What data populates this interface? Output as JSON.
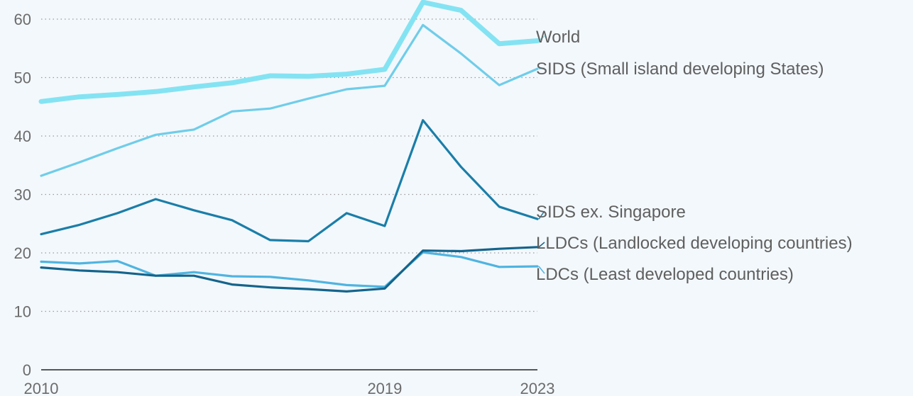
{
  "chart_data": {
    "type": "line",
    "x": [
      2010,
      2011,
      2012,
      2013,
      2014,
      2015,
      2016,
      2017,
      2018,
      2019,
      2020,
      2021,
      2022,
      2023
    ],
    "x_tick_labels": [
      "2010",
      "2019",
      "2023"
    ],
    "y_ticks": [
      0,
      10,
      20,
      30,
      40,
      50,
      60
    ],
    "ylim": [
      0,
      63
    ],
    "grid": true,
    "title": "",
    "xlabel": "",
    "ylabel": "",
    "legend": "direct labels at line ends (right)",
    "series": [
      {
        "name": "World",
        "color": "#84e3f2",
        "values": [
          45.9,
          46.7,
          47.1,
          47.6,
          48.4,
          49.1,
          50.3,
          50.2,
          50.6,
          51.4,
          62.9,
          61.5,
          55.8,
          56.3
        ]
      },
      {
        "name": "SIDS (Small island developing States)",
        "color": "#6fcde9",
        "values": [
          33.2,
          35.5,
          37.9,
          40.2,
          41.1,
          44.2,
          44.7,
          46.4,
          48.0,
          48.6,
          59.0,
          54.1,
          48.7,
          51.5
        ]
      },
      {
        "name": "SIDS ex. Singapore",
        "color": "#1a7ea8",
        "values": [
          23.2,
          24.8,
          26.8,
          29.2,
          27.3,
          25.6,
          22.2,
          22.0,
          26.8,
          24.6,
          42.7,
          34.7,
          27.9,
          25.8
        ]
      },
      {
        "name": "LLDCs (Landlocked developing countries)",
        "color": "#14648b",
        "values": [
          17.5,
          17.0,
          16.7,
          16.1,
          16.1,
          14.6,
          14.1,
          13.8,
          13.4,
          13.9,
          20.4,
          20.3,
          20.7,
          21.0
        ]
      },
      {
        "name": "LDCs (Least developed countries)",
        "color": "#4fb4e0",
        "values": [
          18.5,
          18.2,
          18.6,
          16.1,
          16.7,
          16.0,
          15.9,
          15.3,
          14.5,
          14.2,
          20.1,
          19.3,
          17.6,
          17.7
        ]
      }
    ]
  }
}
